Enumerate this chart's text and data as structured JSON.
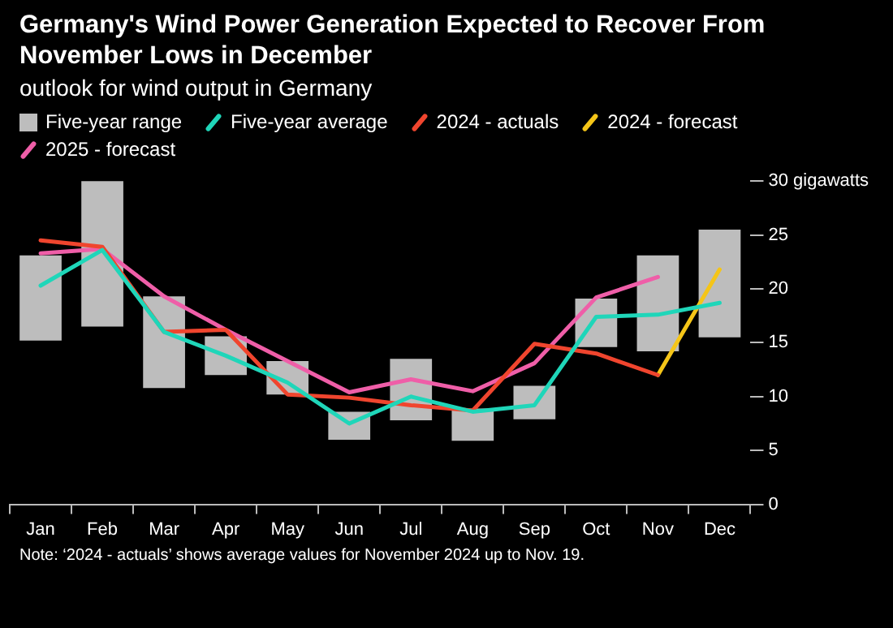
{
  "chart_data": {
    "type": "line",
    "title": "Germany's Wind Power Generation Expected to Recover From November Lows in December",
    "subtitle": "outlook for wind output in Germany",
    "categories": [
      "Jan",
      "Feb",
      "Mar",
      "Apr",
      "May",
      "Jun",
      "Jul",
      "Aug",
      "Sep",
      "Oct",
      "Nov",
      "Dec"
    ],
    "series": [
      {
        "name": "Five-year range",
        "type": "bar",
        "color": "#bdbdbd",
        "base": [
          15.2,
          16.5,
          10.8,
          12.0,
          10.2,
          6.0,
          7.8,
          5.9,
          7.9,
          14.6,
          14.2,
          15.5
        ],
        "values": [
          7.9,
          14.0,
          8.5,
          3.6,
          3.1,
          2.6,
          5.7,
          3.0,
          3.1,
          4.5,
          8.9,
          10.0
        ]
      },
      {
        "name": "Five-year average",
        "color": "#1fd6b9",
        "values": [
          20.3,
          23.6,
          16.0,
          13.8,
          11.3,
          7.5,
          10.0,
          8.6,
          9.2,
          17.4,
          17.6,
          18.7
        ]
      },
      {
        "name": "2024 - actuals",
        "color": "#f0452e",
        "values": [
          24.5,
          23.9,
          16.0,
          16.2,
          10.2,
          9.9,
          9.2,
          8.7,
          14.9,
          14.0,
          12.0,
          null
        ]
      },
      {
        "name": "2024 - forecast",
        "color": "#f5c518",
        "values": [
          null,
          null,
          null,
          null,
          null,
          null,
          null,
          null,
          null,
          null,
          12.0,
          21.8
        ]
      },
      {
        "name": "2025 - forecast",
        "color": "#ef5ea8",
        "values": [
          23.3,
          23.7,
          19.3,
          16.2,
          13.3,
          10.4,
          11.6,
          10.5,
          13.1,
          19.2,
          21.1,
          null
        ]
      }
    ],
    "ylim": [
      0,
      30
    ],
    "yticks": [
      0,
      5,
      10,
      15,
      20,
      25,
      {
        "value": 30,
        "label": "30 gigawatts"
      }
    ],
    "grid": false,
    "legend": "top left",
    "marker": "none",
    "line_style": "solid",
    "annotations": [
      "Note: ‘2024 - actuals’ shows average values for November 2024 up to Nov. 19."
    ]
  }
}
